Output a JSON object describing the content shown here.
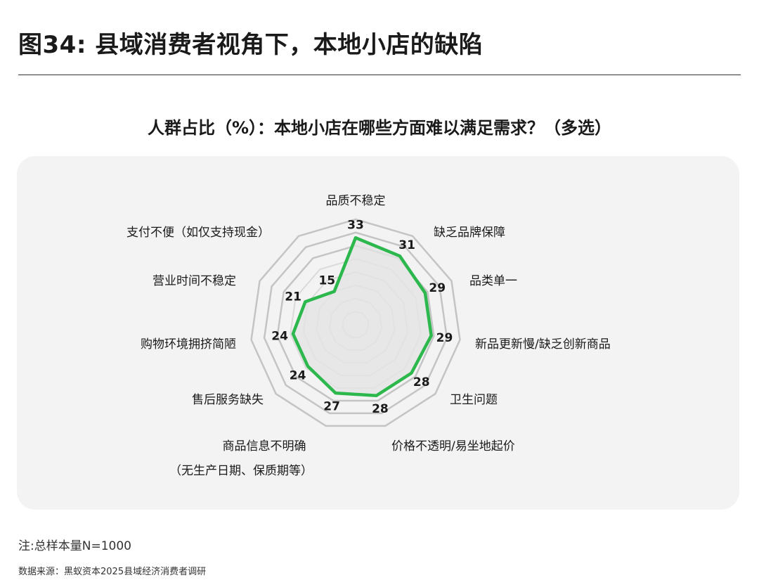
{
  "title": "图34: 县域消费者视角下，本地小店的缺陷",
  "subtitle": "人群占比（%）：本地小店在哪些方面难以满足需求？（多选）",
  "note": "注:总样本量N=1000",
  "source": "数据来源：黑蚁资本2025县域经济消费者调研",
  "chart_data": {
    "type": "radar",
    "title": "人群占比（%）：本地小店在哪些方面难以满足需求？（多选）",
    "categories": [
      "品质不稳定",
      "缺乏品牌保障",
      "品类单一",
      "新品更新慢/缺乏创新商品",
      "卫生问题",
      "价格不透明/易坐地起价",
      "商品信息不明确（无生产日期、保质期等）",
      "售后服务缺失",
      "购物环境拥挤简陋",
      "营业时间不稳定",
      "支付不便（如仅支持现金）"
    ],
    "category_lines": [
      [
        "品质不稳定"
      ],
      [
        "缺乏品牌保障"
      ],
      [
        "品类单一"
      ],
      [
        "新品更新慢/缺乏创新商品"
      ],
      [
        "卫生问题"
      ],
      [
        "价格不透明/易坐地起价"
      ],
      [
        "商品信息不明确",
        "（无生产日期、保质期等）"
      ],
      [
        "售后服务缺失"
      ],
      [
        "购物环境拥挤简陋"
      ],
      [
        "营业时间不稳定"
      ],
      [
        "支付不便（如仅支持现金）"
      ]
    ],
    "values": [
      33,
      31,
      29,
      29,
      28,
      28,
      27,
      24,
      24,
      21,
      15
    ],
    "rlim": [
      0,
      40
    ],
    "grid_rings": [
      5,
      10,
      15,
      20,
      25,
      30,
      35,
      40
    ],
    "line_color": "#2db84d",
    "fill_color": "#e4e4e4",
    "grid": true
  }
}
